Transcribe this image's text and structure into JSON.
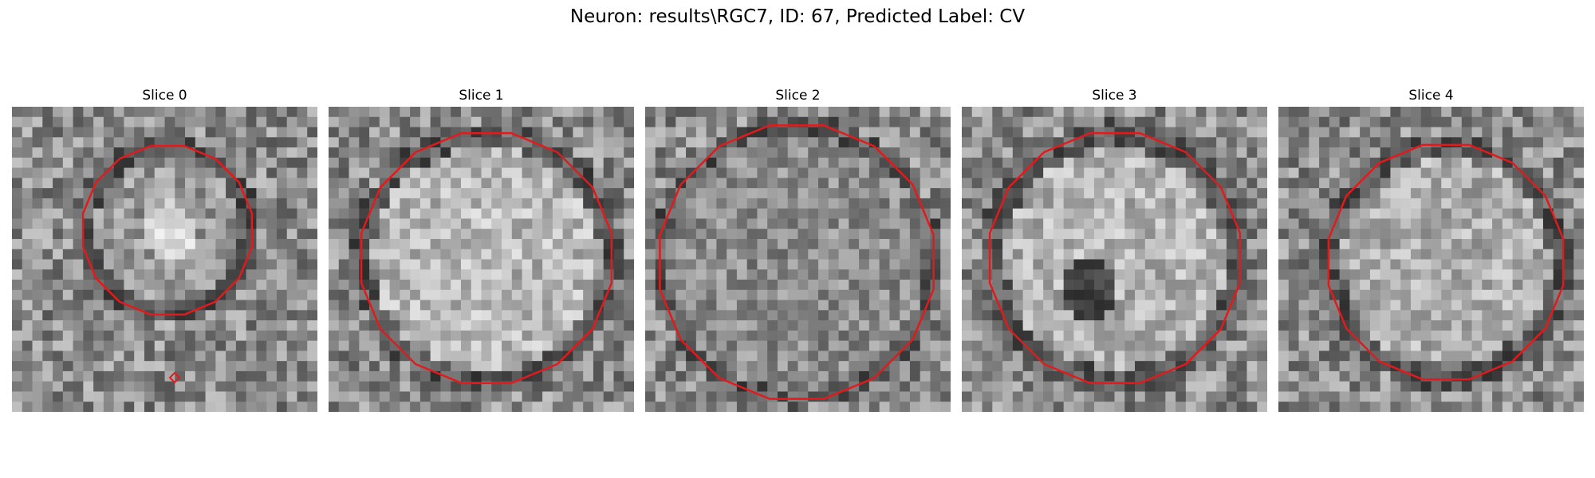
{
  "figure": {
    "title": "Neuron: results\\RGC7, ID: 67, Predicted Label: CV"
  },
  "panels": [
    {
      "title": "Slice 0"
    },
    {
      "title": "Slice 1"
    },
    {
      "title": "Slice 2"
    },
    {
      "title": "Slice 3"
    },
    {
      "title": "Slice 4"
    }
  ],
  "colors": {
    "contour": "#e31a1c",
    "background": "#ffffff"
  }
}
